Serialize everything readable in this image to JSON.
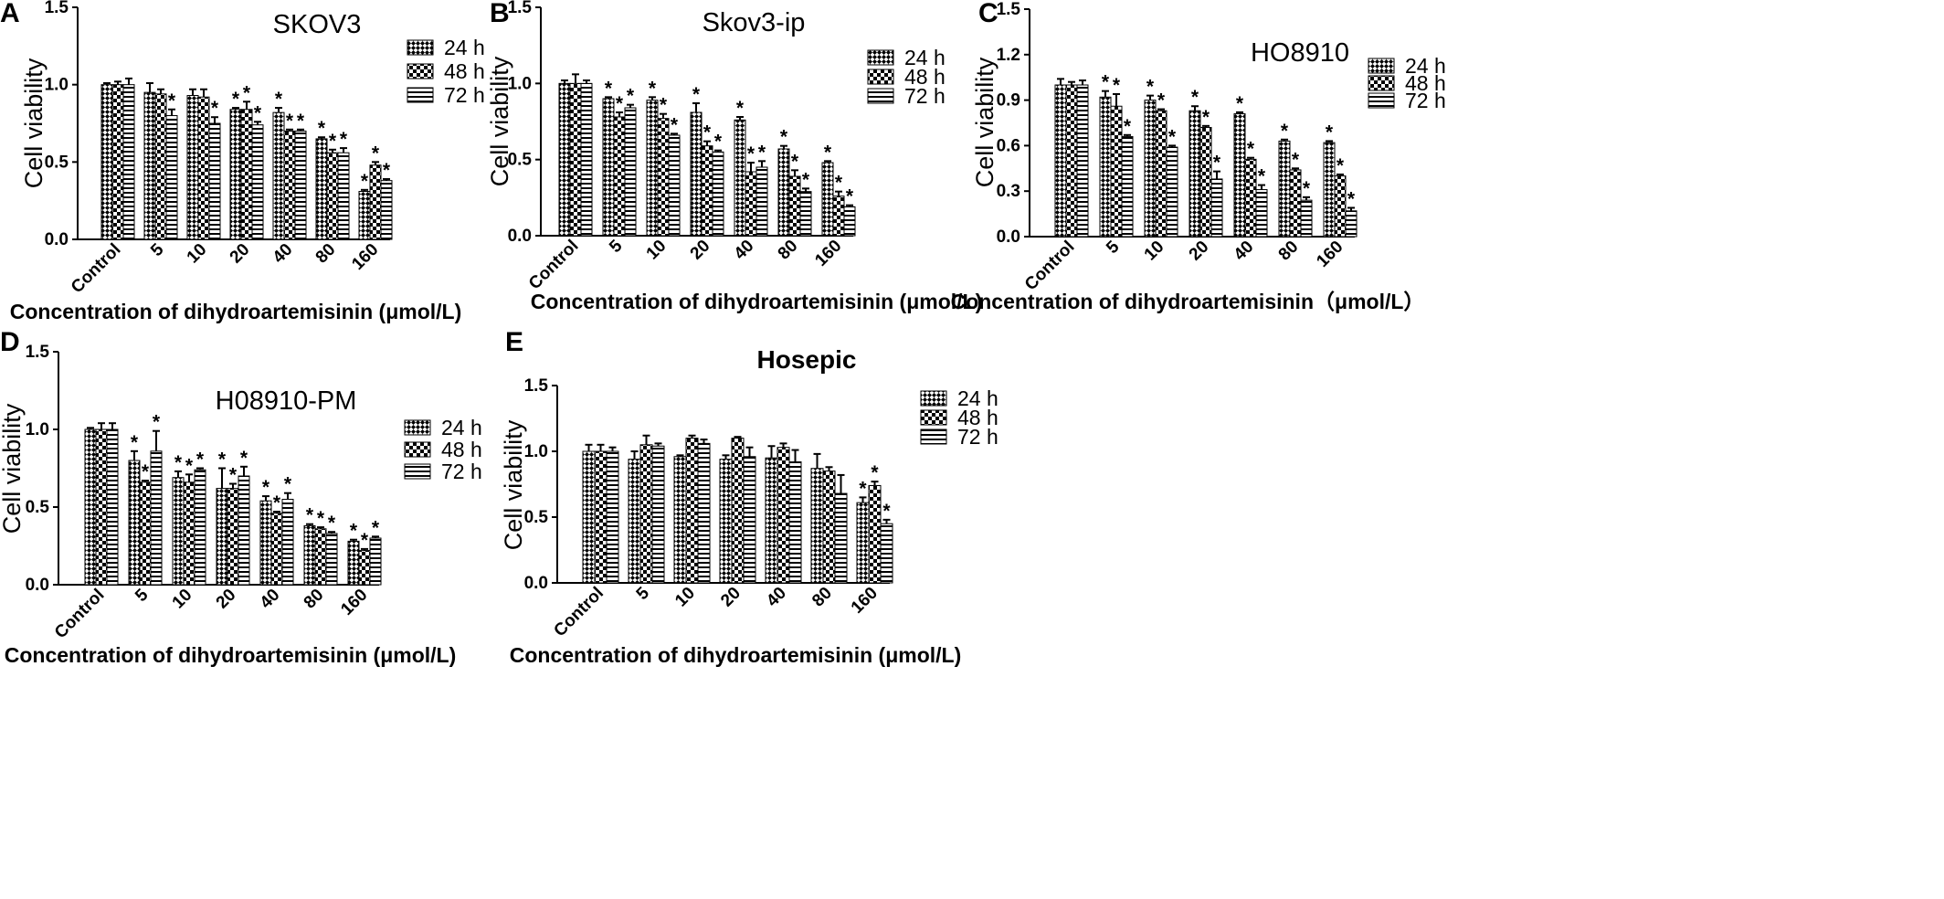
{
  "figure": {
    "legend_labels": [
      "24 h",
      "48 h",
      "72 h"
    ],
    "patterns": [
      "diamond-check",
      "checker",
      "horizontal-stripes"
    ],
    "significance_symbol": "*"
  },
  "chart_data": [
    {
      "panel": "A",
      "type": "bar",
      "title": "SKOV3",
      "title_style": "normal",
      "xlabel": "Concentration of dihydroartemisinin (μmol/L)",
      "ylabel": "Cell viability",
      "ylim": [
        0,
        1.5
      ],
      "yticks": [
        "0.0",
        "0.5",
        "1.0",
        "1.5"
      ],
      "categories": [
        "Control",
        "5",
        "10",
        "20",
        "40",
        "80",
        "160"
      ],
      "legend_position": "top-right",
      "grid": false,
      "series": [
        {
          "name": "24 h",
          "values": [
            1.0,
            0.95,
            0.93,
            0.84,
            0.82,
            0.65,
            0.31
          ],
          "errors": [
            0.01,
            0.06,
            0.04,
            0.01,
            0.03,
            0.01,
            0.01
          ],
          "significant": [
            false,
            false,
            false,
            true,
            true,
            true,
            true
          ]
        },
        {
          "name": "48 h",
          "values": [
            1.0,
            0.94,
            0.92,
            0.84,
            0.7,
            0.56,
            0.48
          ],
          "errors": [
            0.02,
            0.03,
            0.05,
            0.05,
            0.01,
            0.02,
            0.02
          ],
          "significant": [
            false,
            false,
            false,
            true,
            true,
            true,
            true
          ]
        },
        {
          "name": "72 h",
          "values": [
            1.0,
            0.8,
            0.75,
            0.74,
            0.7,
            0.56,
            0.38
          ],
          "errors": [
            0.04,
            0.04,
            0.04,
            0.02,
            0.01,
            0.03,
            0.01
          ],
          "significant": [
            false,
            true,
            true,
            true,
            true,
            true,
            true
          ]
        }
      ]
    },
    {
      "panel": "B",
      "type": "bar",
      "title": "Skov3-ip",
      "title_style": "normal",
      "xlabel": "Concentration of dihydroartemisinin (μmol/L)",
      "ylabel": "Cell viability",
      "ylim": [
        0,
        1.5
      ],
      "yticks": [
        "0.0",
        "0.5",
        "1.0",
        "1.5"
      ],
      "categories": [
        "Control",
        "5",
        "10",
        "20",
        "40",
        "80",
        "160"
      ],
      "legend_position": "top-right",
      "grid": false,
      "series": [
        {
          "name": "24 h",
          "values": [
            1.0,
            0.9,
            0.89,
            0.81,
            0.76,
            0.57,
            0.48
          ],
          "errors": [
            0.02,
            0.01,
            0.02,
            0.06,
            0.02,
            0.02,
            0.01
          ],
          "significant": [
            false,
            true,
            true,
            true,
            true,
            true,
            true
          ]
        },
        {
          "name": "48 h",
          "values": [
            1.0,
            0.78,
            0.77,
            0.59,
            0.42,
            0.39,
            0.26
          ],
          "errors": [
            0.06,
            0.03,
            0.03,
            0.03,
            0.06,
            0.04,
            0.03
          ],
          "significant": [
            false,
            true,
            true,
            true,
            true,
            true,
            true
          ]
        },
        {
          "name": "72 h",
          "values": [
            1.0,
            0.84,
            0.66,
            0.55,
            0.45,
            0.29,
            0.19
          ],
          "errors": [
            0.02,
            0.02,
            0.01,
            0.01,
            0.04,
            0.02,
            0.01
          ],
          "significant": [
            false,
            true,
            true,
            true,
            true,
            true,
            true
          ]
        }
      ]
    },
    {
      "panel": "C",
      "type": "bar",
      "title": "HO8910",
      "title_style": "normal",
      "xlabel": "Concentration of dihydroartemisinin（μmol/L）",
      "ylabel": "Cell viability",
      "ylim": [
        0,
        1.5
      ],
      "yticks": [
        "0.0",
        "0.3",
        "0.6",
        "0.9",
        "1.2",
        "1.5"
      ],
      "categories": [
        "Control",
        "5",
        "10",
        "20",
        "40",
        "80",
        "160"
      ],
      "legend_position": "top-right",
      "grid": false,
      "series": [
        {
          "name": "24 h",
          "values": [
            1.0,
            0.92,
            0.9,
            0.83,
            0.81,
            0.63,
            0.62
          ],
          "errors": [
            0.04,
            0.04,
            0.03,
            0.03,
            0.01,
            0.01,
            0.01
          ],
          "significant": [
            false,
            true,
            true,
            true,
            true,
            true,
            true
          ]
        },
        {
          "name": "48 h",
          "values": [
            1.0,
            0.86,
            0.83,
            0.72,
            0.51,
            0.44,
            0.4
          ],
          "errors": [
            0.02,
            0.08,
            0.01,
            0.01,
            0.01,
            0.01,
            0.01
          ],
          "significant": [
            false,
            true,
            true,
            true,
            true,
            true,
            true
          ]
        },
        {
          "name": "72 h",
          "values": [
            1.0,
            0.66,
            0.59,
            0.38,
            0.31,
            0.24,
            0.17
          ],
          "errors": [
            0.03,
            0.01,
            0.01,
            0.05,
            0.03,
            0.02,
            0.02
          ],
          "significant": [
            false,
            true,
            true,
            true,
            true,
            true,
            true
          ]
        }
      ]
    },
    {
      "panel": "D",
      "type": "bar",
      "title": "H08910-PM",
      "title_style": "normal",
      "xlabel": "Concentration of dihydroartemisinin (μmol/L)",
      "ylabel": "Cell viability",
      "ylim": [
        0,
        1.5
      ],
      "yticks": [
        "0.0",
        "0.5",
        "1.0",
        "1.5"
      ],
      "categories": [
        "Control",
        "5",
        "10",
        "20",
        "40",
        "80",
        "160"
      ],
      "legend_position": "top-right",
      "grid": false,
      "series": [
        {
          "name": "24 h",
          "values": [
            1.0,
            0.8,
            0.69,
            0.62,
            0.54,
            0.38,
            0.28
          ],
          "errors": [
            0.01,
            0.06,
            0.04,
            0.13,
            0.03,
            0.01,
            0.01
          ],
          "significant": [
            false,
            true,
            true,
            true,
            true,
            true,
            true
          ]
        },
        {
          "name": "48 h",
          "values": [
            1.0,
            0.66,
            0.66,
            0.62,
            0.46,
            0.36,
            0.22
          ],
          "errors": [
            0.04,
            0.01,
            0.05,
            0.03,
            0.01,
            0.01,
            0.01
          ],
          "significant": [
            false,
            true,
            true,
            true,
            true,
            true,
            true
          ]
        },
        {
          "name": "72 h",
          "values": [
            1.0,
            0.86,
            0.74,
            0.7,
            0.55,
            0.33,
            0.3
          ],
          "errors": [
            0.04,
            0.13,
            0.01,
            0.06,
            0.04,
            0.01,
            0.01
          ],
          "significant": [
            false,
            true,
            true,
            true,
            true,
            true,
            true
          ]
        }
      ]
    },
    {
      "panel": "E",
      "type": "bar",
      "title": "Hosepic",
      "title_style": "bold",
      "xlabel": "Concentration of dihydroartemisinin (μmol/L)",
      "ylabel": "Cell viability",
      "ylim": [
        0,
        1.5
      ],
      "yticks": [
        "0.0",
        "0.5",
        "1.0",
        "1.5"
      ],
      "categories": [
        "Control",
        "5",
        "10",
        "20",
        "40",
        "80",
        "160"
      ],
      "legend_position": "top-right",
      "grid": false,
      "series": [
        {
          "name": "24 h",
          "values": [
            1.0,
            0.94,
            0.96,
            0.94,
            0.95,
            0.87,
            0.61
          ],
          "errors": [
            0.05,
            0.06,
            0.01,
            0.03,
            0.09,
            0.11,
            0.04
          ],
          "significant": [
            false,
            false,
            false,
            false,
            false,
            false,
            true
          ]
        },
        {
          "name": "48 h",
          "values": [
            1.0,
            1.05,
            1.1,
            1.1,
            1.03,
            0.85,
            0.74
          ],
          "errors": [
            0.05,
            0.07,
            0.02,
            0.01,
            0.03,
            0.03,
            0.03
          ],
          "significant": [
            false,
            false,
            false,
            false,
            false,
            false,
            true
          ]
        },
        {
          "name": "72 h",
          "values": [
            1.0,
            1.04,
            1.06,
            0.96,
            0.92,
            0.68,
            0.45
          ],
          "errors": [
            0.03,
            0.02,
            0.03,
            0.07,
            0.09,
            0.14,
            0.03
          ],
          "significant": [
            false,
            false,
            false,
            false,
            false,
            false,
            true
          ]
        }
      ]
    }
  ]
}
